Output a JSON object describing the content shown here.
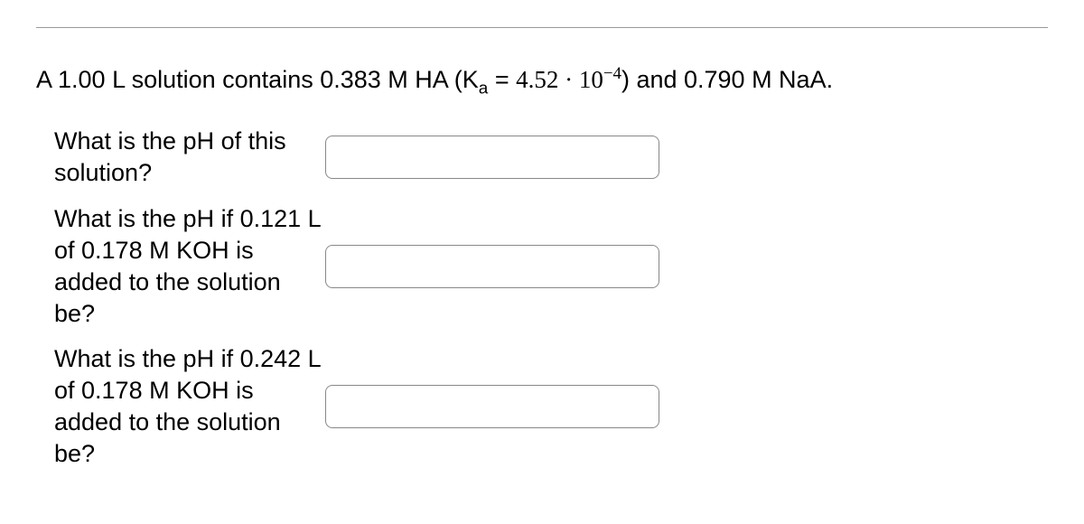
{
  "problem": {
    "prefix": "A 1.00 L solution contains 0.383 M HA (K",
    "sub_a": "a",
    "eq": " = ",
    "coeff": "4.52 · 10",
    "exp": "−4",
    "suffix": ") and 0.790 M NaA."
  },
  "questions": [
    {
      "text": "What is the pH of this solution?"
    },
    {
      "text": "What is the pH if 0.121 L of 0.178 M KOH is added to the solution be?"
    },
    {
      "text": "What is the pH if 0.242 L of 0.178 M KOH is added to the solution be?"
    }
  ],
  "inputs": {
    "q1": "",
    "q2": "",
    "q3": ""
  }
}
